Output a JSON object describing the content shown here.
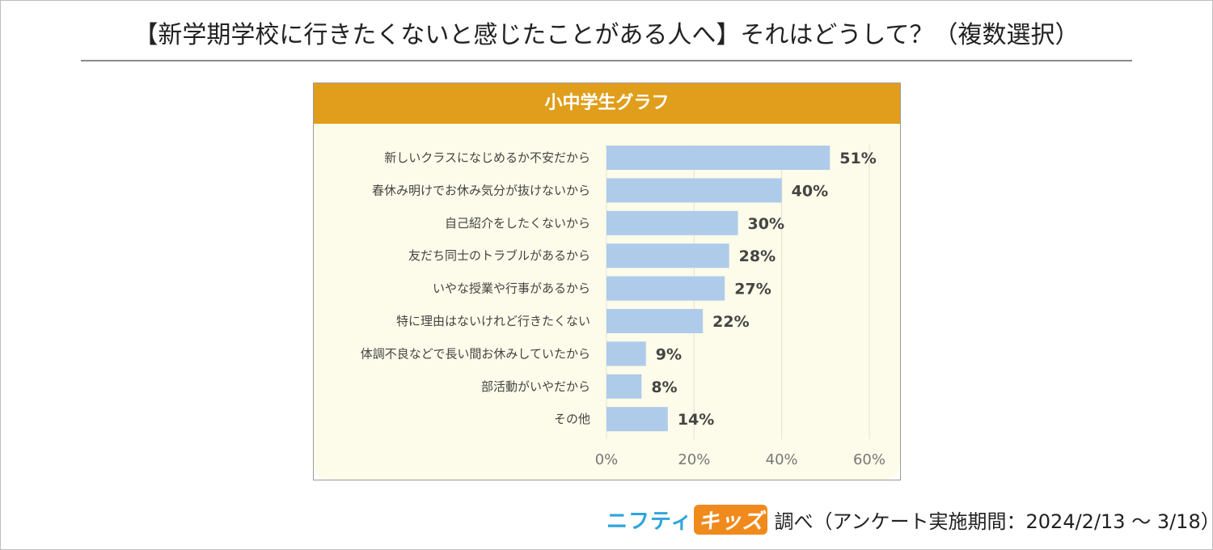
{
  "title": "【新学期学校に行きたくないと感じたことがある人へ】それはどうして？（複数選択）",
  "chart_header": "小中学生グラフ",
  "credit": {
    "logo_part1": "ニフティ",
    "logo_part2": "キッズ",
    "text": "調べ（アンケート実施期間：2024/2/13 ～ 3/18）"
  },
  "colors": {
    "header": "#e09e1c",
    "plot_background": "#fdfbe9",
    "bar": "#aecbea",
    "gridline": "#e3e3d6",
    "value_label": "#444444"
  },
  "chart_data": {
    "type": "bar",
    "orientation": "horizontal",
    "title": "小中学生グラフ",
    "categories": [
      "新しいクラスになじめるか不安だから",
      "春休み明けでお休み気分が抜けないから",
      "自己紹介をしたくないから",
      "友だち同士のトラブルがあるから",
      "いやな授業や行事があるから",
      "特に理由はないけれど行きたくない",
      "体調不良などで長い間お休みしていたから",
      "部活動がいやだから",
      "その他"
    ],
    "values": [
      51,
      40,
      30,
      28,
      27,
      22,
      9,
      8,
      14
    ],
    "value_labels": [
      "51%",
      "40%",
      "30%",
      "28%",
      "27%",
      "22%",
      "9%",
      "8%",
      "14%"
    ],
    "xlim": [
      0,
      60
    ],
    "xticks": [
      0,
      20,
      40,
      60
    ],
    "xtick_labels": [
      "0%",
      "20%",
      "40%",
      "60%"
    ],
    "xlabel": "",
    "ylabel": "",
    "grid": true,
    "legend": "none"
  }
}
